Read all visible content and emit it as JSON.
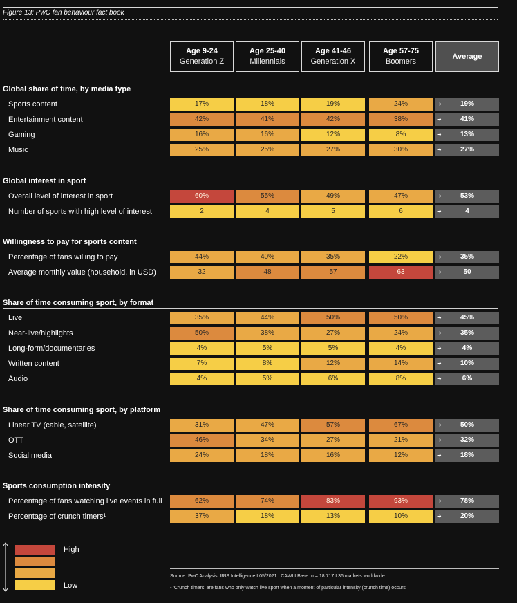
{
  "figure_title": "Figure 13: PwC fan behaviour fact book",
  "columns": [
    {
      "line1": "Age 9-24",
      "line2": "Generation Z"
    },
    {
      "line1": "Age 25-40",
      "line2": "Millennials"
    },
    {
      "line1": "Age 41-46",
      "line2": "Generation X"
    },
    {
      "line1": "Age 57-75",
      "line2": "Boomers"
    }
  ],
  "average_label": "Average",
  "colors": {
    "low": "#F6CE46",
    "mid_low": "#E9A945",
    "mid_high": "#DC8A3E",
    "high": "#C4473C",
    "average_bg": "#5C5C5C",
    "background": "#111111"
  },
  "chart_data": {
    "type": "table",
    "color_scale": [
      "Low",
      "High"
    ],
    "sections": [
      {
        "title": "Global share of time, by media type",
        "rows": [
          {
            "label": "Sports content",
            "values": [
              "17%",
              "18%",
              "19%",
              "24%"
            ],
            "levels": [
              1,
              1,
              1,
              2
            ],
            "average": "19%"
          },
          {
            "label": "Entertainment content",
            "values": [
              "42%",
              "41%",
              "42%",
              "38%"
            ],
            "levels": [
              3,
              3,
              3,
              3
            ],
            "average": "41%"
          },
          {
            "label": "Gaming",
            "values": [
              "16%",
              "16%",
              "12%",
              "8%"
            ],
            "levels": [
              2,
              2,
              1,
              1
            ],
            "average": "13%"
          },
          {
            "label": "Music",
            "values": [
              "25%",
              "25%",
              "27%",
              "30%"
            ],
            "levels": [
              2,
              2,
              2,
              2
            ],
            "average": "27%"
          }
        ]
      },
      {
        "title": "Global interest in sport",
        "rows": [
          {
            "label": "Overall level of interest in sport",
            "values": [
              "60%",
              "55%",
              "49%",
              "47%"
            ],
            "levels": [
              4,
              3,
              2,
              2
            ],
            "average": "53%"
          },
          {
            "label": "Number of sports with high level of interest",
            "values": [
              "2",
              "4",
              "5",
              "6"
            ],
            "levels": [
              1,
              1,
              1,
              1
            ],
            "average": "4"
          }
        ]
      },
      {
        "title": "Willingness to pay for sports content",
        "rows": [
          {
            "label": "Percentage of fans willing to pay",
            "values": [
              "44%",
              "40%",
              "35%",
              "22%"
            ],
            "levels": [
              2,
              2,
              2,
              1
            ],
            "average": "35%"
          },
          {
            "label": "Average monthly value (household, in USD)",
            "values": [
              "32",
              "48",
              "57",
              "63"
            ],
            "levels": [
              2,
              3,
              3,
              4
            ],
            "average": "50"
          }
        ]
      },
      {
        "title": "Share of time consuming sport, by format",
        "rows": [
          {
            "label": "Live",
            "values": [
              "35%",
              "44%",
              "50%",
              "50%"
            ],
            "levels": [
              2,
              2,
              3,
              3
            ],
            "average": "45%"
          },
          {
            "label": "Near-live/highlights",
            "values": [
              "50%",
              "38%",
              "27%",
              "24%"
            ],
            "levels": [
              3,
              2,
              2,
              2
            ],
            "average": "35%"
          },
          {
            "label": "Long-form/documentaries",
            "values": [
              "4%",
              "5%",
              "5%",
              "4%"
            ],
            "levels": [
              1,
              1,
              1,
              1
            ],
            "average": "4%"
          },
          {
            "label": "Written content",
            "values": [
              "7%",
              "8%",
              "12%",
              "14%"
            ],
            "levels": [
              1,
              1,
              2,
              2
            ],
            "average": "10%"
          },
          {
            "label": "Audio",
            "values": [
              "4%",
              "5%",
              "6%",
              "8%"
            ],
            "levels": [
              1,
              1,
              1,
              1
            ],
            "average": "6%"
          }
        ]
      },
      {
        "title": "Share of time consuming sport, by platform",
        "rows": [
          {
            "label": "Linear TV (cable, satellite)",
            "values": [
              "31%",
              "47%",
              "57%",
              "67%"
            ],
            "levels": [
              2,
              2,
              3,
              3
            ],
            "average": "50%"
          },
          {
            "label": "OTT",
            "values": [
              "46%",
              "34%",
              "27%",
              "21%"
            ],
            "levels": [
              3,
              2,
              2,
              2
            ],
            "average": "32%"
          },
          {
            "label": "Social media",
            "values": [
              "24%",
              "18%",
              "16%",
              "12%"
            ],
            "levels": [
              2,
              2,
              2,
              2
            ],
            "average": "18%"
          }
        ]
      },
      {
        "title": "Sports consumption intensity",
        "rows": [
          {
            "label": "Percentage of fans watching live events in full",
            "values": [
              "62%",
              "74%",
              "83%",
              "93%"
            ],
            "levels": [
              3,
              3,
              4,
              4
            ],
            "average": "78%"
          },
          {
            "label": "Percentage of crunch timers¹",
            "values": [
              "37%",
              "18%",
              "13%",
              "10%"
            ],
            "levels": [
              2,
              1,
              1,
              1
            ],
            "average": "20%"
          }
        ]
      }
    ]
  },
  "legend": {
    "high": "High",
    "low": "Low"
  },
  "footnotes": {
    "source": "Source: PwC Analysis, IRIS Intelligence I 05/2021 I CAWI I Base: n = 18.717 I 36 markets worldwide",
    "note": "¹ ‘Crunch timers’ are fans who only watch live sport when a moment of particular intensity (crunch time) occurs"
  }
}
